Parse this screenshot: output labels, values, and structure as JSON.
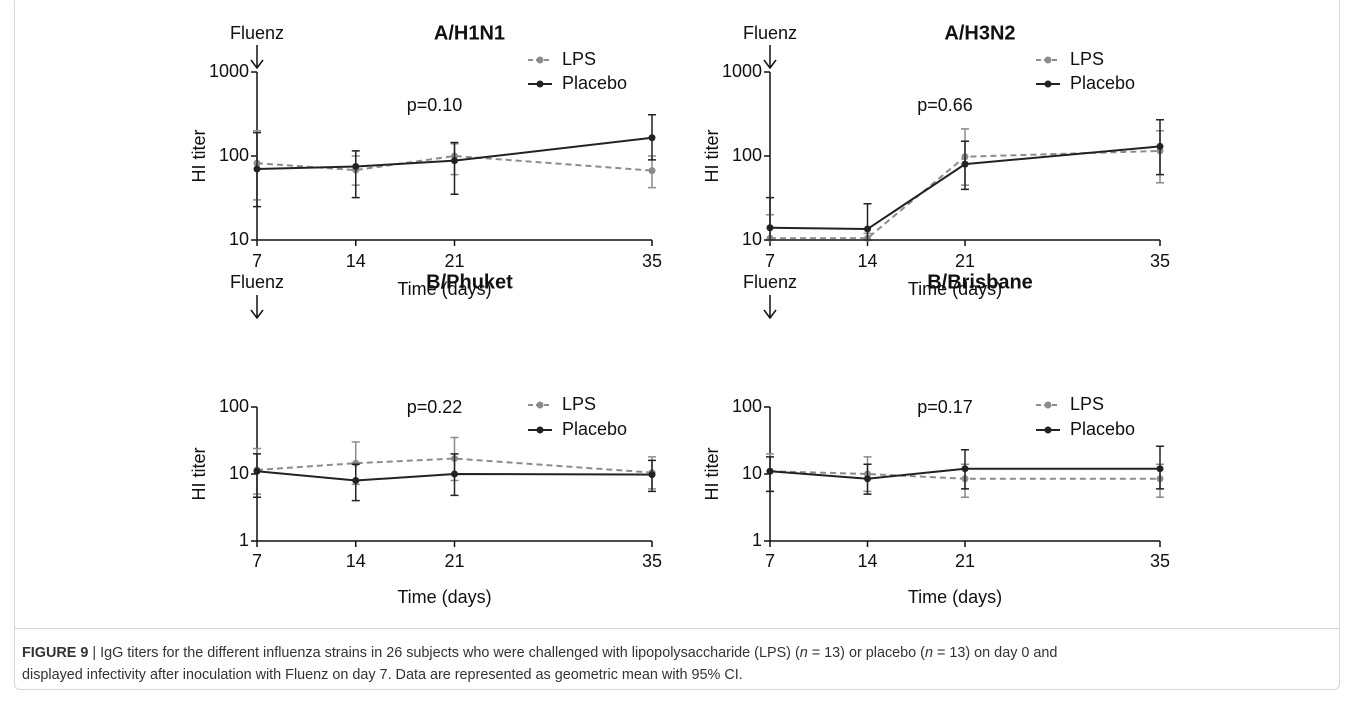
{
  "chart_data": [
    {
      "type": "line",
      "title": "A/H1N1",
      "annotation": "Fluenz",
      "p_value": "p=0.10",
      "xlabel": "Time (days)",
      "ylabel": "HI titer",
      "x": [
        7,
        14,
        21,
        35
      ],
      "xlim": [
        7,
        35
      ],
      "xticks": [
        7,
        14,
        21,
        35
      ],
      "ylim": [
        10,
        1000
      ],
      "yticks": [
        10,
        100,
        1000
      ],
      "log_y": true,
      "grid": false,
      "series": [
        {
          "name": "LPS",
          "color": "#8c8c8c",
          "dashed": true,
          "values": [
            82,
            68,
            100,
            67
          ],
          "ci_low": [
            30,
            45,
            60,
            42
          ],
          "ci_high": [
            200,
            100,
            140,
            100
          ]
        },
        {
          "name": "Placebo",
          "color": "#222222",
          "dashed": false,
          "values": [
            70,
            75,
            88,
            165
          ],
          "ci_low": [
            25,
            32,
            35,
            90
          ],
          "ci_high": [
            190,
            115,
            145,
            310
          ]
        }
      ]
    },
    {
      "type": "line",
      "title": "A/H3N2",
      "annotation": "Fluenz",
      "p_value": "p=0.66",
      "xlabel": "Time (days)",
      "ylabel": "HI titer",
      "x": [
        7,
        14,
        21,
        35
      ],
      "xlim": [
        7,
        35
      ],
      "xticks": [
        7,
        14,
        21,
        35
      ],
      "ylim": [
        10,
        1000
      ],
      "yticks": [
        10,
        100,
        1000
      ],
      "log_y": true,
      "grid": false,
      "series": [
        {
          "name": "LPS",
          "color": "#8c8c8c",
          "dashed": true,
          "values": [
            10.5,
            10.5,
            98,
            115
          ],
          "ci_low": [
            10,
            10,
            45,
            48
          ],
          "ci_high": [
            20,
            12,
            210,
            200
          ]
        },
        {
          "name": "Placebo",
          "color": "#222222",
          "dashed": false,
          "values": [
            14,
            13.5,
            80,
            130
          ],
          "ci_low": [
            10,
            10,
            40,
            60
          ],
          "ci_high": [
            32,
            27,
            150,
            270
          ]
        }
      ]
    },
    {
      "type": "line",
      "title": "B/Phuket",
      "annotation": "Fluenz",
      "p_value": "p=0.22",
      "xlabel": "Time (days)",
      "ylabel": "HI titer",
      "x": [
        7,
        14,
        21,
        35
      ],
      "xlim": [
        7,
        35
      ],
      "xticks": [
        7,
        14,
        21,
        35
      ],
      "ylim": [
        1,
        100
      ],
      "yticks": [
        1,
        10,
        100
      ],
      "log_y": true,
      "grid": false,
      "series": [
        {
          "name": "LPS",
          "color": "#8c8c8c",
          "dashed": true,
          "values": [
            11.5,
            14.5,
            17,
            10.5
          ],
          "ci_low": [
            5,
            7,
            8,
            6
          ],
          "ci_high": [
            24,
            30,
            35,
            18
          ]
        },
        {
          "name": "Placebo",
          "color": "#222222",
          "dashed": false,
          "values": [
            11,
            8,
            10,
            9.8
          ],
          "ci_low": [
            4.5,
            4,
            4.8,
            5.5
          ],
          "ci_high": [
            20,
            14,
            20,
            16
          ]
        }
      ]
    },
    {
      "type": "line",
      "title": "B/Brisbane",
      "annotation": "Fluenz",
      "p_value": "p=0.17",
      "xlabel": "Time (days)",
      "ylabel": "HI titer",
      "x": [
        7,
        14,
        21,
        35
      ],
      "xlim": [
        7,
        35
      ],
      "xticks": [
        7,
        14,
        21,
        35
      ],
      "ylim": [
        1,
        100
      ],
      "yticks": [
        1,
        10,
        100
      ],
      "log_y": true,
      "grid": false,
      "series": [
        {
          "name": "LPS",
          "color": "#8c8c8c",
          "dashed": true,
          "values": [
            11,
            10,
            8.5,
            8.5
          ],
          "ci_low": [
            5.5,
            5.5,
            4.5,
            4.5
          ],
          "ci_high": [
            20,
            18,
            14,
            14
          ]
        },
        {
          "name": "Placebo",
          "color": "#222222",
          "dashed": false,
          "values": [
            11,
            8.5,
            12,
            12
          ],
          "ci_low": [
            5.5,
            5,
            6,
            6
          ],
          "ci_high": [
            18,
            14,
            23,
            26
          ]
        }
      ]
    }
  ],
  "caption": {
    "label": "FIGURE 9",
    "parts": [
      " | IgG titers for the different influenza strains in 26 subjects who were challenged with lipopolysaccharide (LPS) (",
      "n",
      " = 13) or placebo (",
      "n",
      " = 13) on day 0 and displayed infectivity after inoculation with Fluenz on day 7. Data are represented as geometric mean with 95% CI."
    ]
  }
}
